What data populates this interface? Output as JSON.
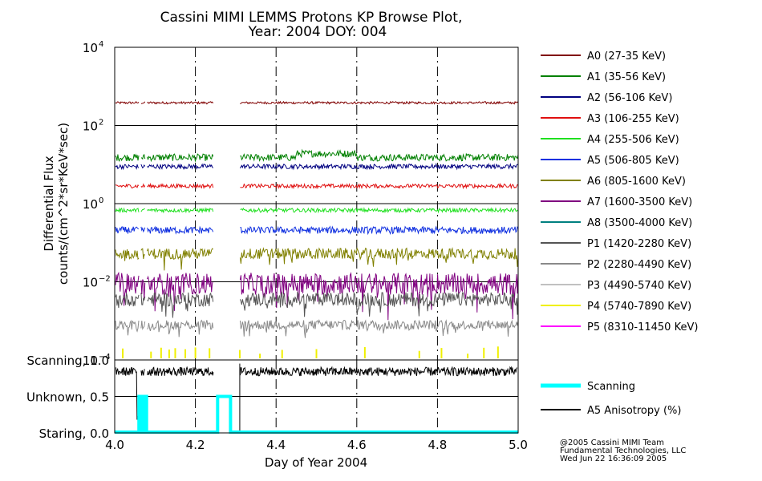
{
  "chart_data": {
    "type": "line",
    "title_line1": "Cassini MIMI LEMMS Protons KP Browse Plot,",
    "title_line2": "Year: 2004 DOY: 004",
    "xlabel": "Day of Year 2004",
    "xlim": [
      4.0,
      5.0
    ],
    "xticks": [
      4.0,
      4.2,
      4.4,
      4.6,
      4.8,
      5.0
    ],
    "xtick_labels": [
      "4.0",
      "4.2",
      "4.4",
      "4.6",
      "4.8",
      "5.0"
    ],
    "ylabel_line1": "Differential Flux",
    "ylabel_line2": "counts/(cm^2*sr*KeV*sec)",
    "yscale": "log",
    "ylim_exponent": [
      -4,
      4
    ],
    "ytick_exponents": [
      -4,
      -2,
      0,
      2,
      4
    ],
    "ytick_base": "10",
    "ytick_exp_labels": [
      "−4",
      "−2",
      "0",
      "2",
      "4"
    ],
    "data_gaps": [
      [
        4.06,
        4.065
      ],
      [
        4.075,
        4.08
      ],
      [
        4.245,
        4.31
      ]
    ],
    "series": [
      {
        "name": "A0 (27-35 KeV)",
        "color": "#800000",
        "log_level": 2.58,
        "noise": 0.03,
        "start": 4.002
      },
      {
        "name": "A1 (35-56 KeV)",
        "color": "#008000",
        "log_level": 1.18,
        "noise": 0.09,
        "start": 4.002
      },
      {
        "name": "A2 (56-106 KeV)",
        "color": "#000080",
        "log_level": 0.95,
        "noise": 0.06,
        "start": 4.002
      },
      {
        "name": "A3 (106-255 KeV)",
        "color": "#e01010",
        "log_level": 0.45,
        "noise": 0.05,
        "start": 4.002
      },
      {
        "name": "A4 (255-506 KeV)",
        "color": "#20e020",
        "log_level": -0.17,
        "noise": 0.05,
        "start": 4.002
      },
      {
        "name": "A5 (506-805 KeV)",
        "color": "#1030e0",
        "log_level": -0.68,
        "noise": 0.09,
        "start": 4.002
      },
      {
        "name": "A6 (805-1600 KeV)",
        "color": "#808000",
        "log_level": -1.28,
        "noise": 0.14,
        "start": 4.002
      },
      {
        "name": "A7 (1600-3500 KeV)",
        "color": "#800080",
        "log_level": -2.05,
        "noise": 0.28,
        "start": 4.002
      },
      {
        "name": "A8 (3500-4000 KeV)",
        "color": "#008080",
        "log_level": null,
        "noise": 0,
        "start": 4.002
      },
      {
        "name": "P1 (1420-2280 KeV)",
        "color": "#555555",
        "log_level": -2.45,
        "noise": 0.18,
        "start": 4.002
      },
      {
        "name": "P2 (2280-4490 KeV)",
        "color": "#8a8a8a",
        "log_level": -3.1,
        "noise": 0.12,
        "start": 4.002
      },
      {
        "name": "P3 (4490-5740 KeV)",
        "color": "#c0c0c0",
        "log_level": null,
        "noise": 0,
        "start": 4.002
      },
      {
        "name": "P4 (5740-7890 KeV)",
        "color": "#f0f000",
        "log_level": null,
        "noise": 0,
        "start": 4.002
      },
      {
        "name": "P5 (8310-11450 KeV)",
        "color": "#ff00ff",
        "log_level": null,
        "noise": 0,
        "start": 4.002
      }
    ],
    "p4_spikes_x": [
      4.02,
      4.09,
      4.115,
      4.135,
      4.15,
      4.175,
      4.2,
      4.235,
      4.31,
      4.36,
      4.415,
      4.5,
      4.62,
      4.755,
      4.81,
      4.875,
      4.915,
      4.95
    ],
    "lower_panel": {
      "ytick_labels": [
        "Scanning, 1.0",
        "Unknown, 0.5",
        "Staring, 0.0"
      ],
      "ytick_values": [
        1.0,
        0.5,
        0.0
      ],
      "ylim": [
        0.0,
        1.0
      ],
      "scanning_trace": {
        "name": "Scanning",
        "color": "#00ffff",
        "steps": [
          [
            4.0,
            0.0
          ],
          [
            4.06,
            0.0
          ],
          [
            4.06,
            0.5
          ],
          [
            4.065,
            0.5
          ],
          [
            4.065,
            0.0
          ],
          [
            4.073,
            0.0
          ],
          [
            4.073,
            0.5
          ],
          [
            4.079,
            0.5
          ],
          [
            4.079,
            0.0
          ],
          [
            4.255,
            0.0
          ],
          [
            4.255,
            0.5
          ],
          [
            4.287,
            0.5
          ],
          [
            4.287,
            0.0
          ],
          [
            5.0,
            0.0
          ]
        ]
      },
      "anisotropy_trace": {
        "name": "A5 Anisotropy (%)",
        "color": "#000000",
        "level": 0.84,
        "noise": 0.06
      }
    },
    "credits": [
      "@2005 Cassini MIMI Team",
      "Fundamental Technologies, LLC",
      "Wed Jun 22 16:36:09 2005"
    ]
  }
}
